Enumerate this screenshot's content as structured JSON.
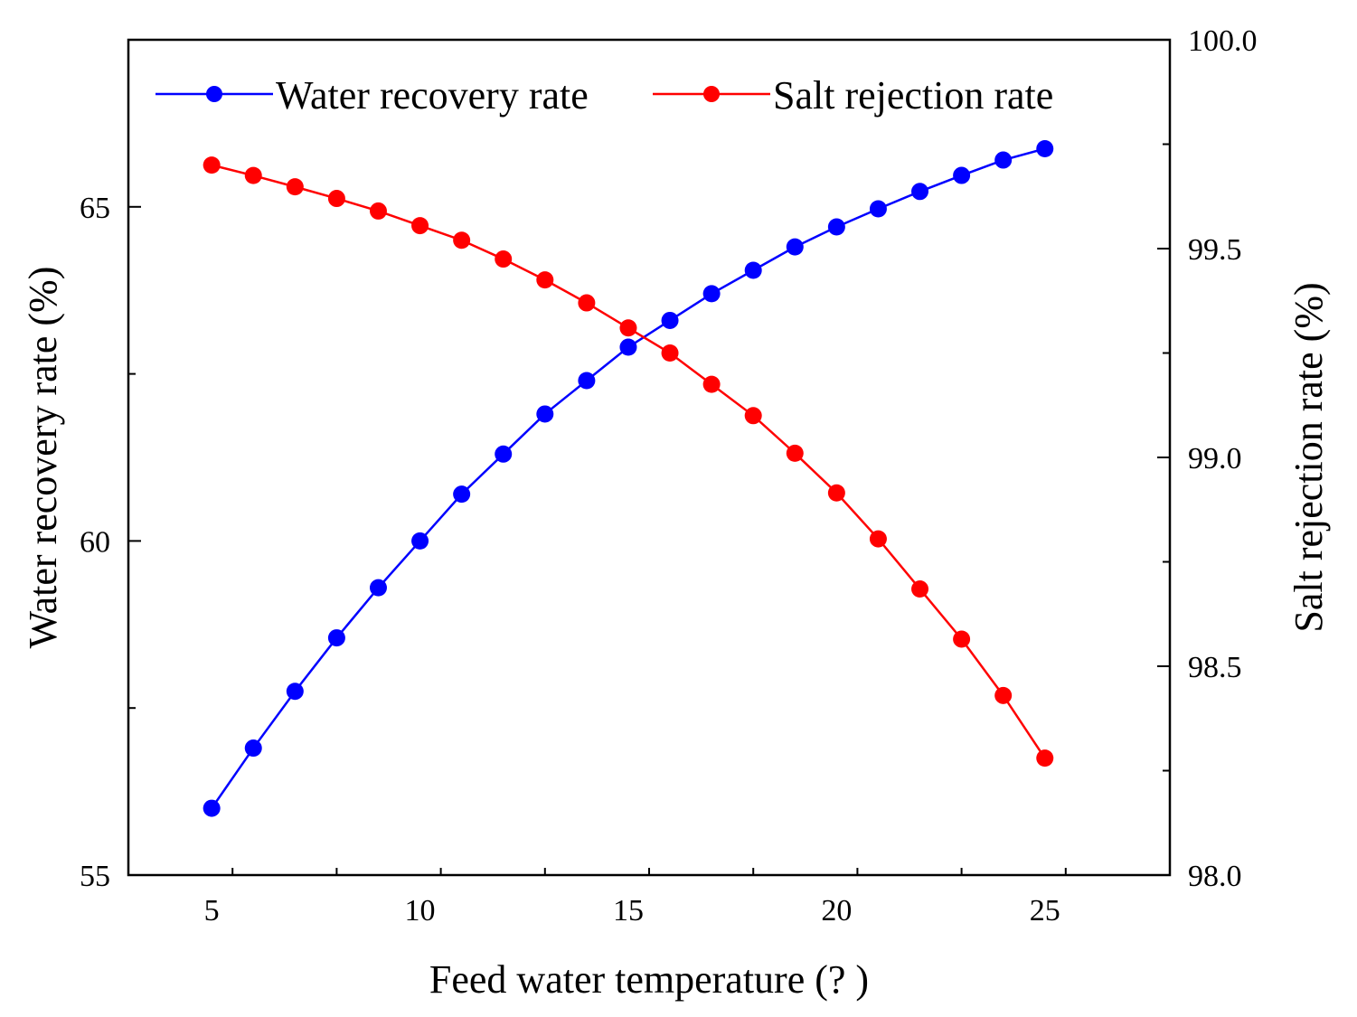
{
  "chart_data": {
    "type": "line",
    "xlabel": "Feed water temperature (?   )",
    "ylabel_left": "Water recovery rate (%)",
    "ylabel_right": "Salt rejection rate (%)",
    "xlim": [
      3,
      28
    ],
    "ylim_left": [
      55,
      67.5
    ],
    "ylim_right": [
      98.0,
      100.0
    ],
    "x_ticks": [
      5,
      10,
      15,
      20,
      25
    ],
    "y_ticks_left": [
      55,
      60,
      65
    ],
    "y_ticks_right": [
      "98.0",
      "98.5",
      "99.0",
      "99.5",
      "100.0"
    ],
    "grid": false,
    "legend_position": "top",
    "x": [
      5,
      6,
      7,
      8,
      9,
      10,
      11,
      12,
      13,
      14,
      15,
      16,
      17,
      18,
      19,
      20,
      21,
      22,
      23,
      24,
      25
    ],
    "series": [
      {
        "name": "Water recovery rate",
        "axis": "left",
        "color": "#0000ff",
        "values": [
          56.0,
          56.9,
          57.75,
          58.55,
          59.3,
          60.0,
          60.7,
          61.3,
          61.9,
          62.4,
          62.9,
          63.3,
          63.7,
          64.05,
          64.4,
          64.7,
          64.97,
          65.23,
          65.47,
          65.7,
          65.87
        ]
      },
      {
        "name": "Salt rejection rate",
        "axis": "right",
        "color": "#ff0000",
        "values": [
          99.7,
          99.675,
          99.648,
          99.62,
          99.59,
          99.555,
          99.52,
          99.475,
          99.425,
          99.37,
          99.31,
          99.25,
          99.175,
          99.1,
          99.01,
          98.915,
          98.805,
          98.685,
          98.565,
          98.43,
          98.28
        ]
      }
    ]
  }
}
